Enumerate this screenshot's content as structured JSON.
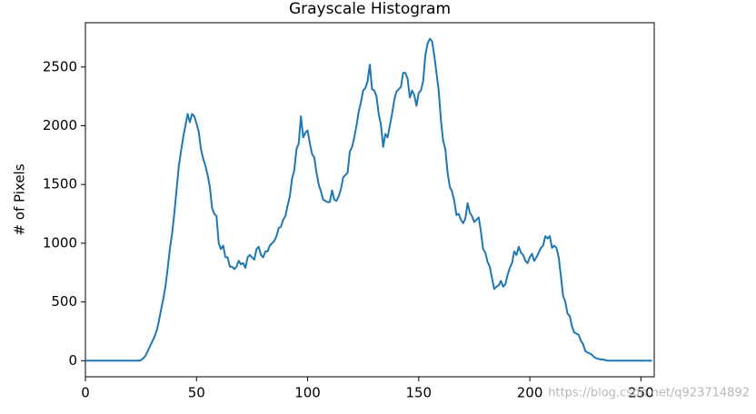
{
  "chart_data": {
    "type": "line",
    "title": "Grayscale Histogram",
    "y_label": "# of Pixels",
    "watermark": "https://blog.csdn.net/q923714892",
    "x": [
      0,
      1,
      2,
      3,
      4,
      5,
      6,
      7,
      8,
      9,
      10,
      11,
      12,
      13,
      14,
      15,
      16,
      17,
      18,
      19,
      20,
      21,
      22,
      23,
      24,
      25,
      26,
      27,
      28,
      29,
      30,
      31,
      32,
      33,
      34,
      35,
      36,
      37,
      38,
      39,
      40,
      41,
      42,
      43,
      44,
      45,
      46,
      47,
      48,
      49,
      50,
      51,
      52,
      53,
      54,
      55,
      56,
      57,
      58,
      59,
      60,
      61,
      62,
      63,
      64,
      65,
      66,
      67,
      68,
      69,
      70,
      71,
      72,
      73,
      74,
      75,
      76,
      77,
      78,
      79,
      80,
      81,
      82,
      83,
      84,
      85,
      86,
      87,
      88,
      89,
      90,
      91,
      92,
      93,
      94,
      95,
      96,
      97,
      98,
      99,
      100,
      101,
      102,
      103,
      104,
      105,
      106,
      107,
      108,
      109,
      110,
      111,
      112,
      113,
      114,
      115,
      116,
      117,
      118,
      119,
      120,
      121,
      122,
      123,
      124,
      125,
      126,
      127,
      128,
      129,
      130,
      131,
      132,
      133,
      134,
      135,
      136,
      137,
      138,
      139,
      140,
      141,
      142,
      143,
      144,
      145,
      146,
      147,
      148,
      149,
      150,
      151,
      152,
      153,
      154,
      155,
      156,
      157,
      158,
      159,
      160,
      161,
      162,
      163,
      164,
      165,
      166,
      167,
      168,
      169,
      170,
      171,
      172,
      173,
      174,
      175,
      176,
      177,
      178,
      179,
      180,
      181,
      182,
      183,
      184,
      185,
      186,
      187,
      188,
      189,
      190,
      191,
      192,
      193,
      194,
      195,
      196,
      197,
      198,
      199,
      200,
      201,
      202,
      203,
      204,
      205,
      206,
      207,
      208,
      209,
      210,
      211,
      212,
      213,
      214,
      215,
      216,
      217,
      218,
      219,
      220,
      221,
      222,
      223,
      224,
      225,
      226,
      227,
      228,
      229,
      230,
      231,
      232,
      233,
      234,
      235,
      236,
      237,
      238,
      239,
      240,
      241,
      242,
      243,
      244,
      245,
      246,
      247,
      248,
      249,
      250,
      251,
      252,
      253,
      254,
      255
    ],
    "series": [
      {
        "color": "#1f77b4",
        "values": [
          0,
          0,
          0,
          0,
          0,
          0,
          0,
          0,
          0,
          0,
          0,
          0,
          0,
          0,
          0,
          0,
          0,
          0,
          0,
          0,
          0,
          0,
          0,
          0,
          0,
          5,
          20,
          40,
          80,
          120,
          160,
          200,
          250,
          330,
          430,
          520,
          630,
          780,
          950,
          1080,
          1250,
          1450,
          1650,
          1780,
          1900,
          2000,
          2100,
          2030,
          2100,
          2080,
          2020,
          1950,
          1800,
          1720,
          1660,
          1580,
          1480,
          1300,
          1250,
          1230,
          1000,
          950,
          980,
          880,
          880,
          800,
          800,
          780,
          800,
          850,
          820,
          830,
          790,
          880,
          900,
          880,
          860,
          950,
          970,
          900,
          880,
          930,
          930,
          980,
          1000,
          1020,
          1060,
          1130,
          1140,
          1200,
          1230,
          1320,
          1400,
          1550,
          1620,
          1800,
          1850,
          2080,
          1900,
          1940,
          1960,
          1850,
          1760,
          1730,
          1600,
          1500,
          1440,
          1370,
          1360,
          1350,
          1350,
          1450,
          1370,
          1360,
          1400,
          1460,
          1560,
          1580,
          1600,
          1780,
          1820,
          1900,
          2000,
          2120,
          2200,
          2300,
          2320,
          2380,
          2520,
          2310,
          2300,
          2250,
          2100,
          2010,
          1820,
          1930,
          1900,
          2000,
          2100,
          2220,
          2290,
          2310,
          2330,
          2450,
          2450,
          2400,
          2240,
          2300,
          2260,
          2170,
          2280,
          2300,
          2380,
          2600,
          2700,
          2740,
          2720,
          2600,
          2450,
          2300,
          2050,
          1870,
          1800,
          1600,
          1480,
          1440,
          1360,
          1240,
          1250,
          1200,
          1170,
          1210,
          1340,
          1260,
          1230,
          1180,
          1200,
          1220,
          1100,
          950,
          920,
          840,
          800,
          700,
          610,
          630,
          640,
          680,
          630,
          650,
          730,
          790,
          830,
          930,
          900,
          970,
          920,
          900,
          850,
          830,
          880,
          910,
          850,
          880,
          920,
          960,
          980,
          1060,
          1040,
          1060,
          960,
          980,
          960,
          880,
          720,
          550,
          500,
          400,
          380,
          290,
          240,
          230,
          220,
          170,
          140,
          80,
          70,
          60,
          50,
          30,
          20,
          15,
          10,
          10,
          5,
          0,
          0,
          0,
          0,
          0,
          0,
          0,
          0,
          0,
          0,
          0,
          0,
          0,
          0,
          0,
          0,
          0,
          0,
          0,
          0,
          0
        ]
      }
    ],
    "xlim": [
      0,
      256
    ],
    "ylim": [
      -137,
      2877
    ],
    "xticks": [
      0,
      50,
      100,
      150,
      200,
      250
    ],
    "yticks": [
      0,
      500,
      1000,
      1500,
      2000,
      2500
    ]
  }
}
